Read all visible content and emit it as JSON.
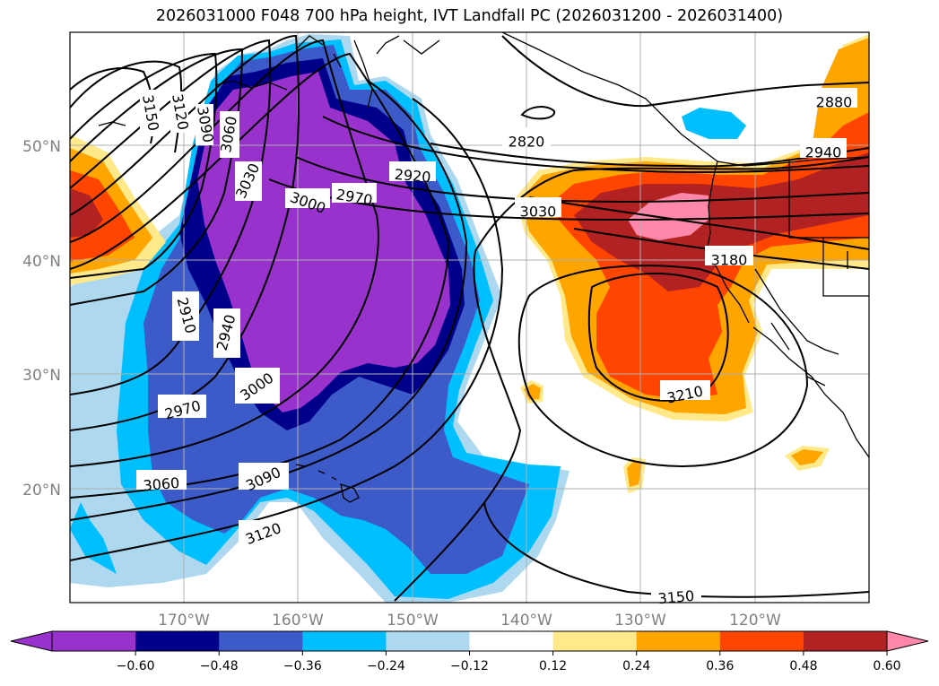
{
  "title": "2026031000 F048 700 hPa height, IVT Landfall PC (2026031200 - 2026031400)",
  "lat_ticks": [
    "50°N",
    "40°N",
    "30°N",
    "20°N"
  ],
  "lon_ticks": [
    "170°W",
    "160°W",
    "150°W",
    "140°W",
    "130°W",
    "120°W"
  ],
  "contour_labels": [
    "3150",
    "3120",
    "3090",
    "3060",
    "3030",
    "3000",
    "2970",
    "2920",
    "2820",
    "2880",
    "2940",
    "3030",
    "3180",
    "3210",
    "2910",
    "2940",
    "3000",
    "2970",
    "3060",
    "3090",
    "3120",
    "3150"
  ],
  "colorbar": {
    "ticks": [
      "−0.60",
      "−0.48",
      "−0.36",
      "−0.24",
      "−0.12",
      "0.12",
      "0.24",
      "0.36",
      "0.48",
      "0.60"
    ],
    "colors": [
      "#9932cc",
      "#00008b",
      "#3c5ac8",
      "#00bfff",
      "#add8f0",
      "#ffffff",
      "#ffe98a",
      "#ffa500",
      "#ff4500",
      "#b22222",
      "#ff88aa",
      "#ff88aa"
    ]
  }
}
